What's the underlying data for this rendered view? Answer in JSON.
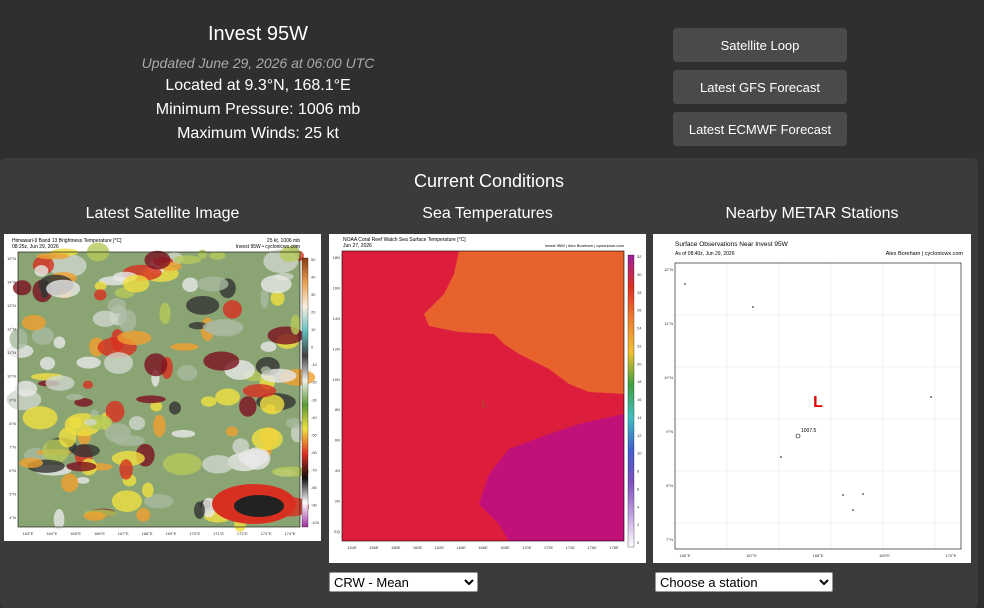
{
  "header": {
    "title": "Invest 95W",
    "updated": "Updated June 29, 2026 at 06:00 UTC",
    "location": "Located at 9.3°N, 168.1°E",
    "pressure": "Minimum Pressure: 1006 mb",
    "winds": "Maximum Winds: 25 kt"
  },
  "buttons": [
    "Satellite Loop",
    "Latest GFS Forecast",
    "Latest ECMWF Forecast"
  ],
  "conditions": {
    "title": "Current Conditions",
    "panels": [
      {
        "heading": "Latest Satellite Image",
        "image": {
          "title": "Himawari-9 Band 13 Brightness Temperature [°C]",
          "subtitle": "08:25z, Jun 29, 2026",
          "info": "25 kt, 1006 mb",
          "credit": "Invest 95W • cyclonicwx.com",
          "lat_labels": [
            "15°N",
            "14°N",
            "13°N",
            "12°N",
            "11°N",
            "10°N",
            "9°N",
            "8°N",
            "7°N",
            "6°N",
            "5°N",
            "4°N"
          ],
          "lon_labels": [
            "163°E",
            "164°E",
            "165°E",
            "166°E",
            "167°E",
            "168°E",
            "169°E",
            "170°E",
            "171°E",
            "172°E",
            "173°E",
            "174°E"
          ],
          "colorbar_labels": [
            "50",
            "40",
            "30",
            "20",
            "10",
            "0",
            "-10",
            "-20",
            "-30",
            "-40",
            "-50",
            "-60",
            "-70",
            "-80",
            "-90",
            "-100"
          ]
        }
      },
      {
        "heading": "Sea Temperatures",
        "image": {
          "title": "NOAA Coral Reef Watch Sea Surface Temperature [°C]",
          "subtitle": "Jun 27, 2026",
          "credit": "Invest 95W | Alex Boreham | cyclonicwx.com",
          "marker": "L",
          "lat_labels": [
            "18N",
            "16N",
            "14N",
            "12N",
            "10N",
            "8N",
            "6N",
            "4N",
            "2N",
            "EQ"
          ],
          "lon_labels": [
            "154E",
            "156E",
            "158E",
            "160E",
            "162E",
            "164E",
            "166E",
            "168E",
            "170E",
            "172E",
            "174E",
            "176E",
            "178E"
          ],
          "colorbar_labels": [
            "32",
            "30",
            "28",
            "26",
            "24",
            "22",
            "20",
            "18",
            "16",
            "14",
            "12",
            "10",
            "8",
            "6",
            "4",
            "2",
            "0"
          ]
        },
        "select": "CRW - Mean"
      },
      {
        "heading": "Nearby METAR Stations",
        "image": {
          "title": "Surface Observations Near Invest 95W",
          "subtitle": "As of 08:40z, Jun 29, 2026",
          "credit": "Alex Boreham | cyclonicwx.com",
          "marker": "L",
          "station": "1007.5",
          "lat_labels": [
            "12°N",
            "11°N",
            "10°N",
            "9°N",
            "8°N",
            "7°N"
          ],
          "lon_labels": [
            "166°E",
            "167°E",
            "168°E",
            "169°E",
            "170°E"
          ]
        },
        "select": "Choose a station"
      }
    ]
  }
}
